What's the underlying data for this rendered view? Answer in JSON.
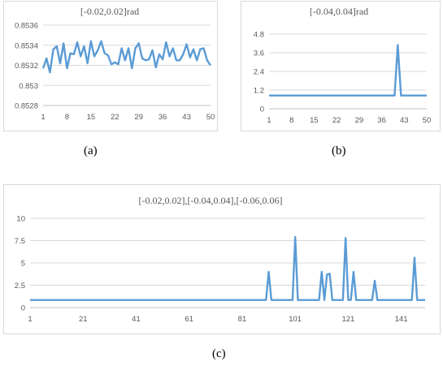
{
  "chart_data": [
    {
      "type": "line",
      "title": "[-0.02,0.02]rad",
      "ylim": [
        0.8528,
        0.8536
      ],
      "yticks": [
        "0.8536",
        "0.8534",
        "0.8532",
        "0.853",
        "0.8528"
      ],
      "xticks": [
        1,
        8,
        15,
        22,
        29,
        36,
        43,
        50
      ],
      "x": [
        1,
        2,
        3,
        4,
        5,
        6,
        7,
        8,
        9,
        10,
        11,
        12,
        13,
        14,
        15,
        16,
        17,
        18,
        19,
        20,
        21,
        22,
        23,
        24,
        25,
        26,
        27,
        28,
        29,
        30,
        31,
        32,
        33,
        34,
        35,
        36,
        37,
        38,
        39,
        40,
        41,
        42,
        43,
        44,
        45,
        46,
        47,
        48,
        49,
        50
      ],
      "series": [
        {
          "values": [
            0.85317,
            0.85327,
            0.85313,
            0.85336,
            0.85339,
            0.85322,
            0.85342,
            0.85317,
            0.85332,
            0.85331,
            0.85343,
            0.85329,
            0.85339,
            0.85322,
            0.85344,
            0.85329,
            0.85335,
            0.85344,
            0.85332,
            0.8533,
            0.85321,
            0.85323,
            0.85321,
            0.85337,
            0.85325,
            0.85337,
            0.85317,
            0.85337,
            0.85342,
            0.85327,
            0.85325,
            0.85326,
            0.85335,
            0.85318,
            0.85331,
            0.85326,
            0.85343,
            0.85329,
            0.85337,
            0.85325,
            0.85325,
            0.85331,
            0.85341,
            0.85328,
            0.85336,
            0.85325,
            0.85336,
            0.85337,
            0.85325,
            0.8532
          ]
        }
      ],
      "grid": true
    },
    {
      "type": "line",
      "title": "[-0.04,0.04]rad",
      "ylim": [
        0,
        4.8
      ],
      "yticks": [
        "4.8",
        "3.6",
        "2.4",
        "1.2",
        "0"
      ],
      "xticks": [
        1,
        8,
        15,
        22,
        29,
        36,
        43,
        50
      ],
      "x": [
        1,
        2,
        3,
        4,
        5,
        6,
        7,
        8,
        9,
        10,
        11,
        12,
        13,
        14,
        15,
        16,
        17,
        18,
        19,
        20,
        21,
        22,
        23,
        24,
        25,
        26,
        27,
        28,
        29,
        30,
        31,
        32,
        33,
        34,
        35,
        36,
        37,
        38,
        39,
        40,
        41,
        42,
        43,
        44,
        45,
        46,
        47,
        48,
        49,
        50
      ],
      "series": [
        {
          "values": [
            0.85,
            0.85,
            0.85,
            0.85,
            0.85,
            0.85,
            0.85,
            0.85,
            0.85,
            0.85,
            0.85,
            0.85,
            0.85,
            0.85,
            0.85,
            0.85,
            0.85,
            0.85,
            0.85,
            0.85,
            0.85,
            0.85,
            0.85,
            0.85,
            0.85,
            0.85,
            0.85,
            0.85,
            0.85,
            0.85,
            0.85,
            0.85,
            0.85,
            0.85,
            0.85,
            0.85,
            0.85,
            0.85,
            0.85,
            0.85,
            4.1,
            0.85,
            0.85,
            0.85,
            0.85,
            0.85,
            0.85,
            0.85,
            0.85,
            0.85
          ]
        }
      ],
      "grid": true
    },
    {
      "type": "line",
      "title": "[-0.02,0.02],[-0.04,0.04],[-0.06,0.06]",
      "ylim": [
        0,
        10
      ],
      "yticks": [
        "10",
        "7.5",
        "5",
        "2.5",
        "0"
      ],
      "xticks": [
        1,
        21,
        41,
        61,
        81,
        101,
        121,
        141
      ],
      "x_count": 150,
      "series": [
        {
          "baseline": 0.85,
          "spikes": [
            [
              91,
              4.0
            ],
            [
              101,
              7.9
            ],
            [
              111,
              4.0
            ],
            [
              113,
              3.7
            ],
            [
              114,
              3.8
            ],
            [
              120,
              7.8
            ],
            [
              123,
              4.0
            ],
            [
              131,
              3.0
            ],
            [
              146,
              5.6
            ]
          ]
        }
      ],
      "grid": true
    }
  ],
  "captions": {
    "a": "(a)",
    "b": "(b)",
    "c": "(c)"
  }
}
